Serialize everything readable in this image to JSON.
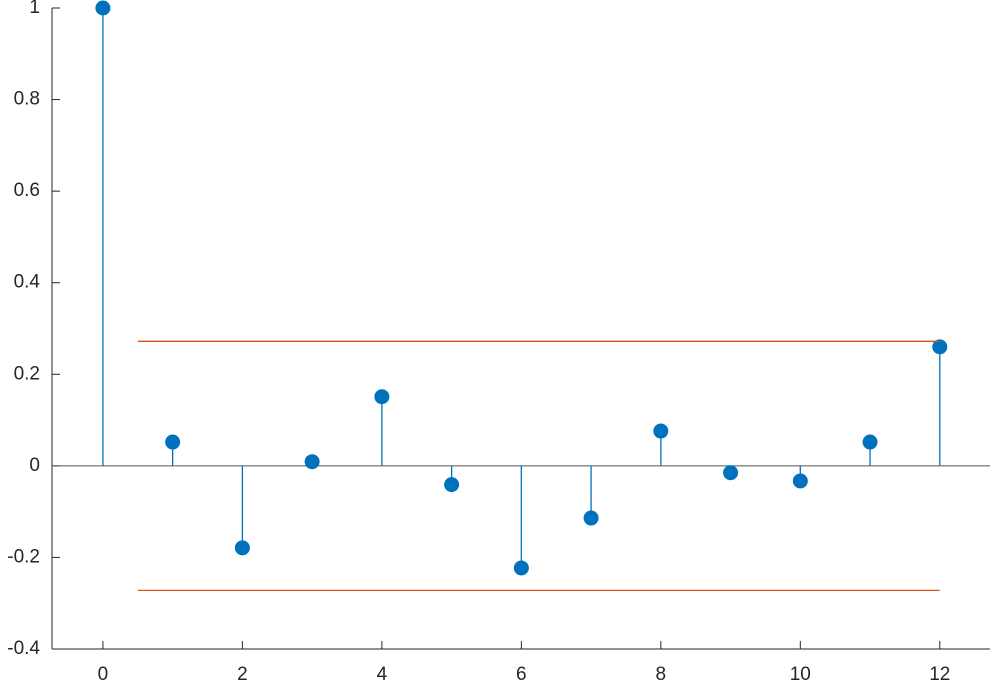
{
  "chart_data": {
    "type": "stem",
    "x": [
      0,
      1,
      2,
      3,
      4,
      5,
      6,
      7,
      8,
      9,
      10,
      11,
      12
    ],
    "series": [
      {
        "type": "stem",
        "color": "#0072bd",
        "values": [
          1,
          0.052,
          -0.179,
          0.009,
          0.151,
          -0.041,
          -0.223,
          -0.114,
          0.076,
          -0.015,
          -0.033,
          0.052,
          0.26
        ]
      },
      {
        "type": "line",
        "color": "#d95319",
        "x": [
          0.5,
          12
        ],
        "values": [
          0.272,
          0.272
        ]
      },
      {
        "type": "line",
        "color": "#d95319",
        "x": [
          0.5,
          12
        ],
        "values": [
          -0.272,
          -0.272
        ]
      }
    ],
    "xlim": [
      -0.73,
      12.72
    ],
    "ylim": [
      -0.4,
      1
    ],
    "xticks": [
      0,
      2,
      4,
      6,
      8,
      10,
      12
    ],
    "yticks": [
      -0.4,
      -0.2,
      0,
      0.2,
      0.4,
      0.6,
      0.8,
      1
    ],
    "baseline": 0
  }
}
